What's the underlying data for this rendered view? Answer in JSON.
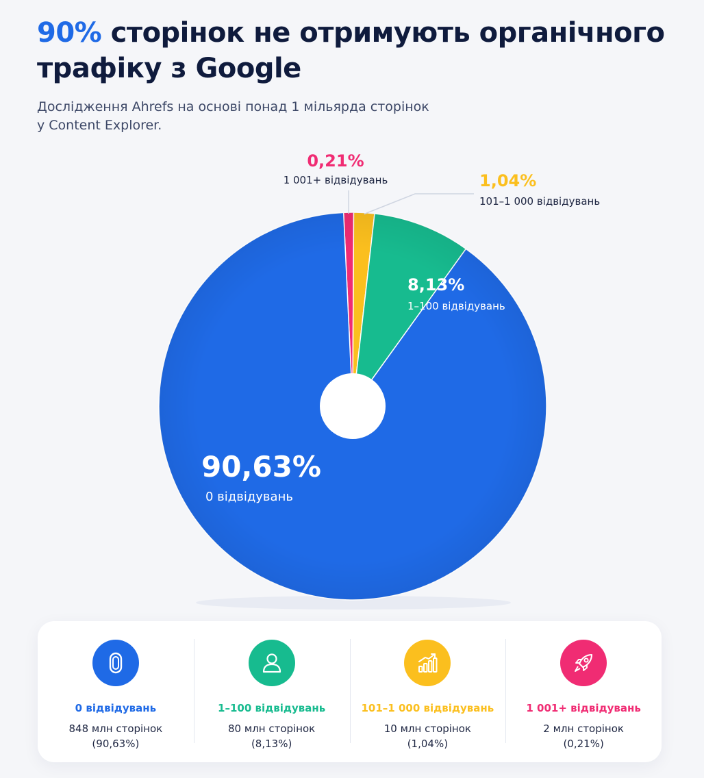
{
  "header": {
    "title_highlight": "90%",
    "title_rest": " сторінок не отримують органічного трафіку з Google",
    "subtitle_line1": "Дослідження Ahrefs на основі понад 1 мільярда сторінок",
    "subtitle_line2": "у Content Explorer."
  },
  "chart_data": {
    "type": "pie",
    "title": "90% сторінок не отримують органічного трафіку з Google",
    "slices": [
      {
        "label": "0 відвідувань",
        "value": 90.63,
        "display": "90,63%",
        "color": "#1f6ae6"
      },
      {
        "label": "1–100 відвідувань",
        "value": 8.13,
        "display": "8,13%",
        "color": "#17bb8f"
      },
      {
        "label": "101–1 000 відвідувань",
        "value": 1.04,
        "display": "1,04%",
        "color": "#fbbf1e"
      },
      {
        "label": "1 001+ відвідувань",
        "value": 0.21,
        "display": "0,21%",
        "color": "#f02c73"
      }
    ]
  },
  "stats": [
    {
      "label": "0 відвідувань",
      "pages": "848 млн сторінок",
      "percent": "(90,63%)",
      "color": "#1f6ae6",
      "icon": "zero-icon"
    },
    {
      "label": "1–100 відвідувань",
      "pages": "80 млн сторінок",
      "percent": "(8,13%)",
      "color": "#17bb8f",
      "icon": "user-icon"
    },
    {
      "label": "101–1 000 відвідувань",
      "pages": "10 млн сторінок",
      "percent": "(1,04%)",
      "color": "#fbbf1e",
      "icon": "growth-chart-icon"
    },
    {
      "label": "1 001+ відвідувань",
      "pages": "2 млн сторінок",
      "percent": "(0,21%)",
      "color": "#f02c73",
      "icon": "rocket-icon"
    }
  ]
}
